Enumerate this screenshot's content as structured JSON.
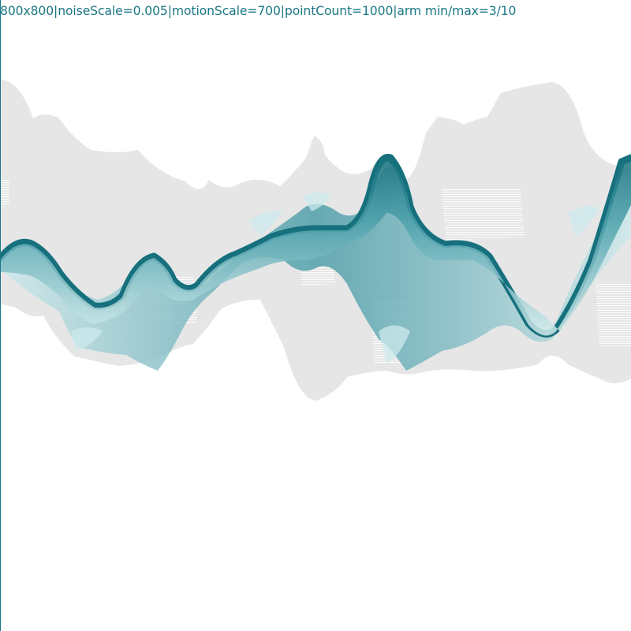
{
  "sketch": {
    "info_text": "800x800|noiseScale=0.005|motionScale=700|pointCount=1000|arm min/max=3/10"
  },
  "colors": {
    "background": "#ffffff",
    "shadow": "#e6e6e6",
    "shadow_hatch": "#ffffff",
    "ribbon_dark": "#16707d",
    "ribbon_mid": "#4a9faa",
    "ribbon_light": "#cde9ec",
    "text": "#1a7785"
  }
}
